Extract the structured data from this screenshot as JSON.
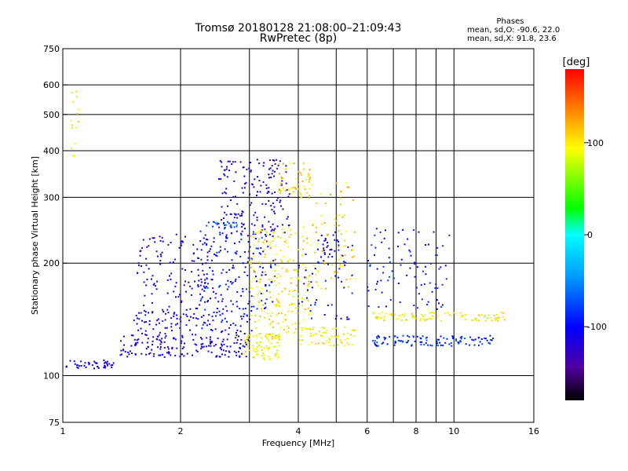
{
  "title": "Tromsø 20180128 21:08:00–21:09:43",
  "subtitle": "RwPretec (8p)",
  "phases": {
    "heading": "Phases",
    "line_o": "mean, sd,O: -90.6, 22.0",
    "line_x": "mean, sd,X:  91.8, 23.6"
  },
  "colorbar": {
    "label": "[deg]",
    "ticks": [
      "100",
      "0",
      "-100"
    ],
    "range": [
      -180,
      180
    ],
    "tick_values": [
      100,
      0,
      -100
    ]
  },
  "chart_data": {
    "type": "scatter",
    "title": "Tromsø 20180128 21:08:00–21:09:43",
    "subtitle": "RwPretec (8p)",
    "xlabel": "Frequency [MHz]",
    "ylabel": "Stationary phase Virtual Height [km]",
    "x_scale": "log",
    "y_scale": "log",
    "xlim": [
      1,
      16
    ],
    "ylim": [
      75,
      750
    ],
    "x_ticks": [
      1,
      2,
      4,
      6,
      8,
      10,
      16
    ],
    "x_tick_labels": [
      "1",
      "2",
      "4",
      "6",
      "8",
      "10",
      "16"
    ],
    "y_ticks": [
      75,
      100,
      200,
      300,
      400,
      500,
      600,
      750
    ],
    "y_tick_labels": [
      "75",
      "100",
      "200",
      "300",
      "400",
      "500",
      "600",
      "750"
    ],
    "grid": true,
    "grid_x": [
      2,
      3,
      4,
      5,
      6,
      7,
      8,
      9,
      10
    ],
    "grid_y": [
      100,
      200,
      300,
      400,
      500,
      600
    ],
    "color_by": "phase (deg)",
    "clusters": [
      {
        "x": [
          1.02,
          1.35
        ],
        "y": [
          104,
          110
        ],
        "phase": -110,
        "n": 45
      },
      {
        "x": [
          1.4,
          3.0
        ],
        "y": [
          112,
          128
        ],
        "phase": -115,
        "n": 170
      },
      {
        "x": [
          1.5,
          3.1
        ],
        "y": [
          128,
          150
        ],
        "phase": -105,
        "n": 110
      },
      {
        "x": [
          1.55,
          2.5
        ],
        "y": [
          145,
          240
        ],
        "phase": -120,
        "n": 140
      },
      {
        "x": [
          2.2,
          3.5
        ],
        "y": [
          150,
          245
        ],
        "phase": -95,
        "n": 170
      },
      {
        "x": [
          2.5,
          3.8
        ],
        "y": [
          240,
          380
        ],
        "phase": -120,
        "n": 170
      },
      {
        "x": [
          2.3,
          2.8
        ],
        "y": [
          248,
          258
        ],
        "phase": -75,
        "n": 25
      },
      {
        "x": [
          2.9,
          3.6
        ],
        "y": [
          110,
          130
        ],
        "phase": 95,
        "n": 90
      },
      {
        "x": [
          3.0,
          4.3
        ],
        "y": [
          130,
          250
        ],
        "phase": 100,
        "n": 200
      },
      {
        "x": [
          3.5,
          4.3
        ],
        "y": [
          300,
          370
        ],
        "phase": 110,
        "n": 50
      },
      {
        "x": [
          4.0,
          5.6
        ],
        "y": [
          120,
          135
        ],
        "phase": 95,
        "n": 65
      },
      {
        "x": [
          4.2,
          5.6
        ],
        "y": [
          170,
          330
        ],
        "phase": 110,
        "n": 90
      },
      {
        "x": [
          4.5,
          5.1
        ],
        "y": [
          205,
          245
        ],
        "phase": -110,
        "n": 25
      },
      {
        "x": [
          4.0,
          5.5
        ],
        "y": [
          140,
          230
        ],
        "phase": -100,
        "n": 50
      },
      {
        "x": [
          6.2,
          12.8
        ],
        "y": [
          120,
          128
        ],
        "phase": -85,
        "n": 110
      },
      {
        "x": [
          6.2,
          13.5
        ],
        "y": [
          140,
          148
        ],
        "phase": 95,
        "n": 95
      },
      {
        "x": [
          6.0,
          9.8
        ],
        "y": [
          150,
          250
        ],
        "phase": -95,
        "n": 90
      },
      {
        "x": [
          1.05,
          1.1
        ],
        "y": [
          380,
          600
        ],
        "phase": 100,
        "n": 15
      }
    ]
  }
}
